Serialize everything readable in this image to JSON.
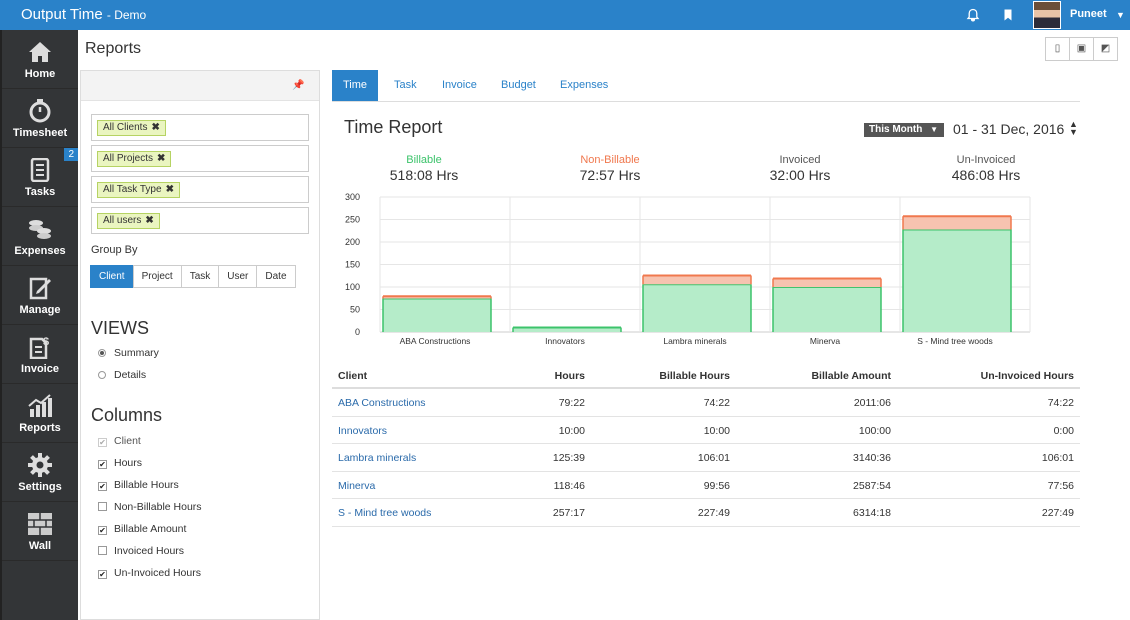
{
  "app": {
    "title": "Output Time",
    "subtitle": "- Demo",
    "user": "Puneet"
  },
  "sidebar": {
    "items": [
      {
        "label": "Home",
        "icon": "home-icon"
      },
      {
        "label": "Timesheet",
        "icon": "stopwatch-icon"
      },
      {
        "label": "Tasks",
        "icon": "tasks-icon",
        "badge": "2"
      },
      {
        "label": "Expenses",
        "icon": "coins-icon"
      },
      {
        "label": "Manage",
        "icon": "edit-icon"
      },
      {
        "label": "Invoice",
        "icon": "invoice-icon"
      },
      {
        "label": "Reports",
        "icon": "chart-icon"
      },
      {
        "label": "Settings",
        "icon": "gear-icon"
      },
      {
        "label": "Wall",
        "icon": "wall-icon"
      }
    ]
  },
  "page": {
    "title": "Reports"
  },
  "filters": {
    "tags": [
      "All Clients",
      "All Projects",
      "All Task Type",
      "All users"
    ],
    "group_by_label": "Group By",
    "group_by": [
      "Client",
      "Project",
      "Task",
      "User",
      "Date"
    ],
    "group_by_selected": "Client",
    "views_title": "VIEWS",
    "views": [
      {
        "label": "Summary",
        "selected": true
      },
      {
        "label": "Details",
        "selected": false
      }
    ],
    "columns_title": "Columns",
    "columns": [
      {
        "label": "Client",
        "checked": true,
        "disabled": true
      },
      {
        "label": "Hours",
        "checked": true
      },
      {
        "label": "Billable Hours",
        "checked": true
      },
      {
        "label": "Non-Billable Hours",
        "checked": false
      },
      {
        "label": "Billable Amount",
        "checked": true
      },
      {
        "label": "Invoiced Hours",
        "checked": false
      },
      {
        "label": "Un-Invoiced Hours",
        "checked": true
      }
    ]
  },
  "tabs": [
    {
      "label": "Time",
      "active": true
    },
    {
      "label": "Task"
    },
    {
      "label": "Invoice"
    },
    {
      "label": "Budget"
    },
    {
      "label": "Expenses"
    }
  ],
  "report": {
    "title": "Time Report",
    "period": "This Month",
    "date_range": "01 - 31 Dec, 2016",
    "stats": [
      {
        "label": "Billable",
        "value": "518:08 Hrs",
        "color": "#3cc36b"
      },
      {
        "label": "Non-Billable",
        "value": "72:57 Hrs",
        "color": "#f0784e"
      },
      {
        "label": "Invoiced",
        "value": "32:00 Hrs",
        "color": "#555555"
      },
      {
        "label": "Un-Invoiced",
        "value": "486:08 Hrs",
        "color": "#555555"
      }
    ]
  },
  "chart_data": {
    "type": "bar",
    "stacked": true,
    "categories": [
      "ABA Constructions",
      "Innovators",
      "Lambra minerals",
      "Minerva",
      "S - Mind tree woods"
    ],
    "series": [
      {
        "name": "Billable",
        "values": [
          74.37,
          10,
          106.02,
          99.93,
          227.82
        ],
        "color": "#3cc36b",
        "fill": "#b5ecc9"
      },
      {
        "name": "Non-Billable",
        "values": [
          5,
          0,
          19.63,
          18.83,
          29.47
        ],
        "color": "#f0784e",
        "fill": "#f7c3b0"
      }
    ],
    "yticks": [
      0,
      50,
      100,
      150,
      200,
      250,
      300
    ],
    "ylim": [
      0,
      300
    ],
    "grid": true
  },
  "table": {
    "headers": [
      "Client",
      "Hours",
      "Billable Hours",
      "Billable Amount",
      "Un-Invoiced Hours"
    ],
    "rows": [
      [
        "ABA Constructions",
        "79:22",
        "74:22",
        "2011:06",
        "74:22"
      ],
      [
        "Innovators",
        "10:00",
        "10:00",
        "100:00",
        "0:00"
      ],
      [
        "Lambra minerals",
        "125:39",
        "106:01",
        "3140:36",
        "106:01"
      ],
      [
        "Minerva",
        "118:46",
        "99:56",
        "2587:54",
        "77:56"
      ],
      [
        "S - Mind tree woods",
        "257:17",
        "227:49",
        "6314:18",
        "227:49"
      ]
    ]
  }
}
